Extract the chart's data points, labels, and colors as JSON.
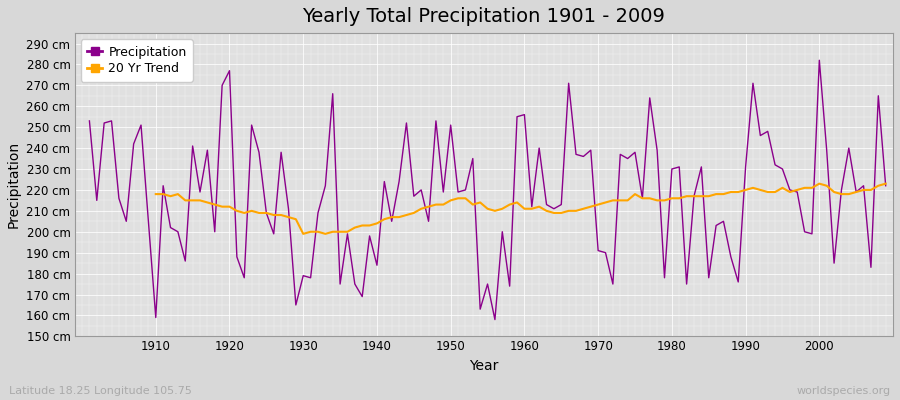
{
  "title": "Yearly Total Precipitation 1901 - 2009",
  "xlabel": "Year",
  "ylabel": "Precipitation",
  "subtitle": "Latitude 18.25 Longitude 105.75",
  "watermark": "worldspecies.org",
  "ylim": [
    150,
    295
  ],
  "yticks": [
    150,
    160,
    170,
    180,
    190,
    200,
    210,
    220,
    230,
    240,
    250,
    260,
    270,
    280,
    290
  ],
  "xticks": [
    1910,
    1920,
    1930,
    1940,
    1950,
    1960,
    1970,
    1980,
    1990,
    2000
  ],
  "years": [
    1901,
    1902,
    1903,
    1904,
    1905,
    1906,
    1907,
    1908,
    1909,
    1910,
    1911,
    1912,
    1913,
    1914,
    1915,
    1916,
    1917,
    1918,
    1919,
    1920,
    1921,
    1922,
    1923,
    1924,
    1925,
    1926,
    1927,
    1928,
    1929,
    1930,
    1931,
    1932,
    1933,
    1934,
    1935,
    1936,
    1937,
    1938,
    1939,
    1940,
    1941,
    1942,
    1943,
    1944,
    1945,
    1946,
    1947,
    1948,
    1949,
    1950,
    1951,
    1952,
    1953,
    1954,
    1955,
    1956,
    1957,
    1958,
    1959,
    1960,
    1961,
    1962,
    1963,
    1964,
    1965,
    1966,
    1967,
    1968,
    1969,
    1970,
    1971,
    1972,
    1973,
    1974,
    1975,
    1976,
    1977,
    1978,
    1979,
    1980,
    1981,
    1982,
    1983,
    1984,
    1985,
    1986,
    1987,
    1988,
    1989,
    1990,
    1991,
    1992,
    1993,
    1994,
    1995,
    1996,
    1997,
    1998,
    1999,
    2000,
    2001,
    2002,
    2003,
    2004,
    2005,
    2006,
    2007,
    2008,
    2009
  ],
  "precip": [
    253,
    215,
    252,
    253,
    216,
    205,
    242,
    251,
    205,
    159,
    222,
    202,
    200,
    186,
    241,
    219,
    239,
    200,
    270,
    277,
    188,
    178,
    251,
    238,
    209,
    199,
    238,
    211,
    165,
    179,
    178,
    209,
    222,
    266,
    175,
    199,
    175,
    169,
    198,
    184,
    224,
    205,
    224,
    252,
    217,
    220,
    205,
    253,
    219,
    251,
    219,
    220,
    235,
    163,
    175,
    158,
    200,
    174,
    255,
    256,
    212,
    240,
    213,
    211,
    213,
    271,
    237,
    236,
    239,
    191,
    190,
    175,
    237,
    235,
    238,
    216,
    264,
    239,
    178,
    230,
    231,
    175,
    217,
    231,
    178,
    203,
    205,
    188,
    176,
    231,
    271,
    246,
    248,
    232,
    230,
    220,
    219,
    200,
    199,
    282,
    239,
    185,
    220,
    240,
    219,
    222,
    183,
    265,
    222
  ],
  "trend_years": [
    1910,
    1911,
    1912,
    1913,
    1914,
    1915,
    1916,
    1917,
    1918,
    1919,
    1920,
    1921,
    1922,
    1923,
    1924,
    1925,
    1926,
    1927,
    1928,
    1929,
    1930,
    1931,
    1932,
    1933,
    1934,
    1935,
    1936,
    1937,
    1938,
    1939,
    1940,
    1941,
    1942,
    1943,
    1944,
    1945,
    1946,
    1947,
    1948,
    1949,
    1950,
    1951,
    1952,
    1953,
    1954,
    1955,
    1956,
    1957,
    1958,
    1959,
    1960,
    1961,
    1962,
    1963,
    1964,
    1965,
    1966,
    1967,
    1968,
    1969,
    1970,
    1971,
    1972,
    1973,
    1974,
    1975,
    1976,
    1977,
    1978,
    1979,
    1980,
    1981,
    1982,
    1983,
    1984,
    1985,
    1986,
    1987,
    1988,
    1989,
    1990,
    1991,
    1992,
    1993,
    1994,
    1995,
    1996,
    1997,
    1998,
    1999,
    2000,
    2001,
    2002,
    2003,
    2004,
    2005,
    2006,
    2007,
    2008,
    2009
  ],
  "trend": [
    218,
    218,
    217,
    218,
    215,
    215,
    215,
    214,
    213,
    212,
    212,
    210,
    209,
    210,
    209,
    209,
    208,
    208,
    207,
    206,
    199,
    200,
    200,
    199,
    200,
    200,
    200,
    202,
    203,
    203,
    204,
    206,
    207,
    207,
    208,
    209,
    211,
    212,
    213,
    213,
    215,
    216,
    216,
    213,
    214,
    211,
    210,
    211,
    213,
    214,
    211,
    211,
    212,
    210,
    209,
    209,
    210,
    210,
    211,
    212,
    213,
    214,
    215,
    215,
    215,
    218,
    216,
    216,
    215,
    215,
    216,
    216,
    217,
    217,
    217,
    217,
    218,
    218,
    219,
    219,
    220,
    221,
    220,
    219,
    219,
    221,
    219,
    220,
    221,
    221,
    223,
    222,
    219,
    218,
    218,
    219,
    220,
    220,
    222,
    223
  ],
  "precip_color": "#8B008B",
  "trend_color": "#FFA500",
  "fig_bg_color": "#d8d8d8",
  "plot_bg_color": "#e0e0e0",
  "grid_color": "#ffffff",
  "title_fontsize": 14,
  "axis_label_fontsize": 10,
  "tick_fontsize": 8.5,
  "legend_fontsize": 9,
  "subtitle_color": "#aaaaaa",
  "watermark_color": "#aaaaaa"
}
